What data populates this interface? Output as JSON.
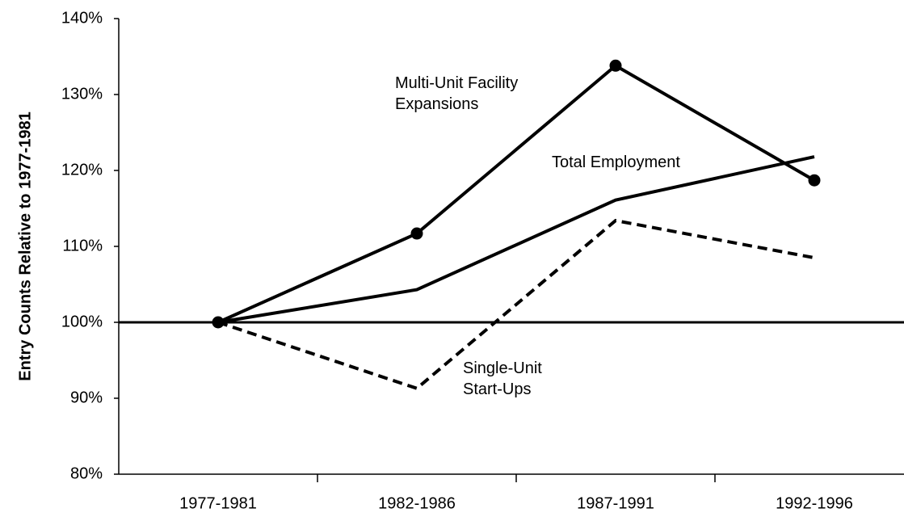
{
  "chart_data": {
    "type": "line",
    "y_label": "Entry Counts Relative to 1977-1981",
    "categories": [
      "1977-1981",
      "1982-1986",
      "1987-1991",
      "1992-1996"
    ],
    "series": [
      {
        "name": "Multi-Unit Facility\nExpansions",
        "color": "#000000",
        "marker": "circle",
        "dashed": false,
        "values": [
          100,
          111.7,
          133.8,
          118.7
        ]
      },
      {
        "name": "Total Employment",
        "color": "#000000",
        "marker": "none",
        "dashed": false,
        "values": [
          100,
          104.3,
          116.1,
          121.8
        ]
      },
      {
        "name": "Single-Unit\nStart-Ups",
        "color": "#000000",
        "marker": "none",
        "dashed": true,
        "values": [
          100,
          91.3,
          113.4,
          108.5
        ]
      }
    ],
    "reference_line": 100,
    "ylim": [
      80,
      140
    ],
    "yticks": [
      {
        "value": 80,
        "label": "80%"
      },
      {
        "value": 90,
        "label": "90%"
      },
      {
        "value": 100,
        "label": "100%"
      },
      {
        "value": 110,
        "label": "110%"
      },
      {
        "value": 120,
        "label": "120%"
      },
      {
        "value": 130,
        "label": "130%"
      },
      {
        "value": 140,
        "label": "140%"
      }
    ],
    "grid": false
  }
}
